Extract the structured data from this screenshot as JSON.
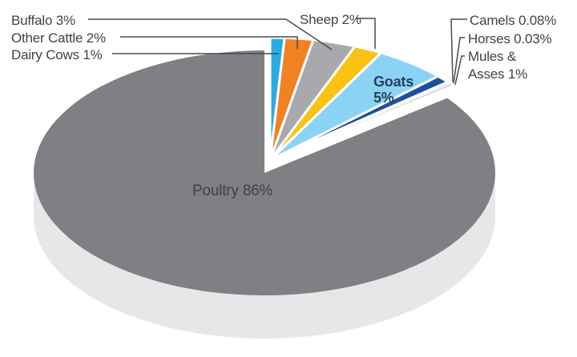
{
  "chart_data": {
    "type": "pie",
    "unit": "%",
    "slices": [
      {
        "label": "Dairy Cows",
        "value": 1,
        "text": "Dairy Cows 1%",
        "color": "#29ABE2"
      },
      {
        "label": "Other Cattle",
        "value": 2,
        "text": "Other Cattle 2%",
        "color": "#F28122"
      },
      {
        "label": "Buffalo",
        "value": 3,
        "text": "Buffalo 3%",
        "color": "#A7A9AC"
      },
      {
        "label": "Sheep",
        "value": 2,
        "text": "Sheep 2%",
        "color": "#FBC311"
      },
      {
        "label": "Goats",
        "value": 5,
        "text": "Goats 5%",
        "color": "#8BD3F5"
      },
      {
        "label": "Mules & Asses",
        "value": 1,
        "text": "Mules & Asses 1%",
        "color": "#1D4F9B"
      },
      {
        "label": "Horses",
        "value": 0.03,
        "text": "Horses 0.03%",
        "color": "#EDEDEF"
      },
      {
        "label": "Camels",
        "value": 0.08,
        "text": "Camels 0.08%",
        "color": "#D9DADC"
      },
      {
        "label": "Poultry",
        "value": 86,
        "text": "Poultry 86%",
        "color": "#7E8083"
      }
    ],
    "style": {
      "projection": "3d",
      "start_angle_deg": 90,
      "direction": "clockwise",
      "depth_color": "#E7E7E9",
      "exploded_group": [
        "Dairy Cows",
        "Other Cattle",
        "Buffalo",
        "Sheep",
        "Goats",
        "Mules & Asses",
        "Horses",
        "Camels"
      ],
      "legend": "none, slices annotated with leader lines"
    }
  },
  "labels": {
    "buffalo": "Buffalo 3%",
    "other_cattle": "Other Cattle 2%",
    "dairy_cows": "Dairy Cows 1%",
    "sheep": "Sheep 2%",
    "camels": "Camels 0.08%",
    "horses": "Horses 0.03%",
    "mules_line1": "Mules &",
    "mules_line2": "Asses 1%",
    "goats_line1": "Goats",
    "goats_line2": "5%",
    "poultry": "Poultry 86%"
  },
  "colors": {
    "background": "#FFFFFF",
    "leader_line": "#4A4B4E",
    "label_text": "#414246",
    "goats_text": "#24415E",
    "poultry_text": "#3E4044"
  }
}
